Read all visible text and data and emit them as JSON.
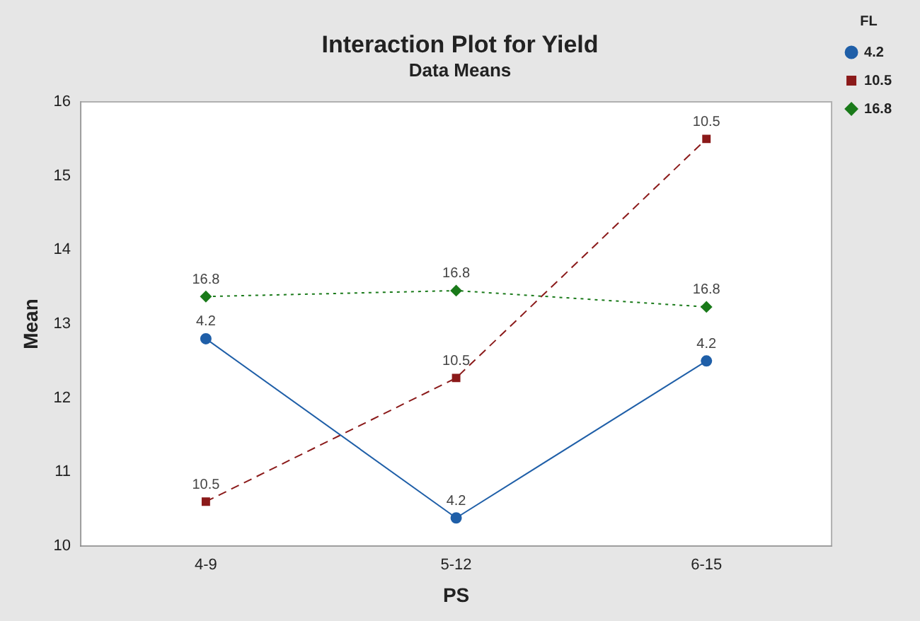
{
  "chart_data": {
    "type": "line",
    "title": "Interaction Plot for Yield",
    "subtitle": "Data Means",
    "xlabel": "PS",
    "ylabel": "Mean",
    "legend_title": "FL",
    "categories": [
      "4-9",
      "5-12",
      "6-15"
    ],
    "series": [
      {
        "name": "4.2",
        "color": "#1f5fa8",
        "values": [
          12.8,
          10.38,
          12.5
        ],
        "marker": "circle",
        "line_style": "solid"
      },
      {
        "name": "10.5",
        "color": "#8b1a1a",
        "values": [
          10.6,
          12.27,
          15.5
        ],
        "marker": "square",
        "line_style": "dashed"
      },
      {
        "name": "16.8",
        "color": "#1a7a1a",
        "values": [
          13.37,
          13.45,
          13.23
        ],
        "marker": "diamond",
        "line_style": "dotted"
      }
    ],
    "annotations": [
      {
        "text": "4.2",
        "x": "4-9",
        "y": 12.8
      },
      {
        "text": "4.2",
        "x": "5-12",
        "y": 10.38
      },
      {
        "text": "4.2",
        "x": "6-15",
        "y": 12.5
      },
      {
        "text": "10.5",
        "x": "4-9",
        "y": 10.6
      },
      {
        "text": "10.5",
        "x": "5-12",
        "y": 12.27
      },
      {
        "text": "10.5",
        "x": "6-15",
        "y": 15.5
      },
      {
        "text": "16.8",
        "x": "4-9",
        "y": 13.37
      },
      {
        "text": "16.8",
        "x": "5-12",
        "y": 13.45
      },
      {
        "text": "16.8",
        "x": "6-15",
        "y": 13.23
      }
    ],
    "ylim": [
      10,
      16
    ],
    "yticks": [
      10,
      11,
      12,
      13,
      14,
      15,
      16
    ],
    "grid": false,
    "legend": "top right"
  }
}
